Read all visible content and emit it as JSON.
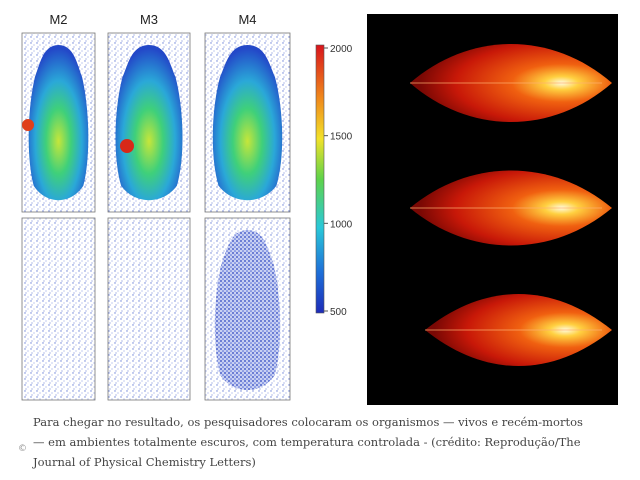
{
  "figure": {
    "panels": [
      "M2",
      "M3",
      "M4"
    ],
    "colorbar": {
      "ticks": [
        "2000",
        "1500",
        "1000",
        "500"
      ]
    }
  },
  "caption": {
    "lines": [
      "Para chegar no resultado, os pesquisadores colocaram os organismos — vivos e recém-mortos",
      "— em ambientes totalmente escuros, com temperatura controlada - (crédito: Reprodução/The",
      "Journal of Physical Chemistry Letters)"
    ]
  }
}
